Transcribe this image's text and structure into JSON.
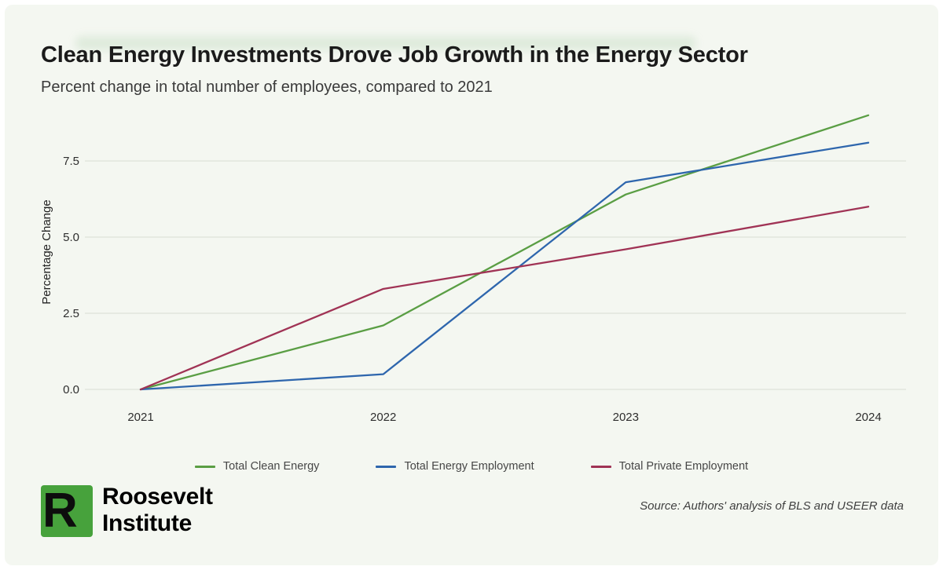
{
  "header": {
    "title": "Clean Energy Investments Drove Job Growth in the Energy Sector",
    "subtitle": "Percent change in total number of employees, compared to 2021"
  },
  "chart_data": {
    "type": "line",
    "title": "Clean Energy Investments Drove Job Growth in the Energy Sector",
    "subtitle": "Percent change in total number of employees, compared to 2021",
    "xlabel": "",
    "ylabel": "Percentage Change",
    "x_labels": [
      "2021",
      "2022",
      "2023",
      "2024"
    ],
    "yticks": [
      "0.0",
      "2.5",
      "5.0",
      "7.5"
    ],
    "ylim": [
      0,
      9.3
    ],
    "grid": "horizontal",
    "legend_position": "bottom",
    "series": [
      {
        "name": "Total Clean Energy",
        "color": "#5a9e44",
        "values": [
          0,
          2.1,
          6.4,
          9.0
        ]
      },
      {
        "name": "Total Energy Employment",
        "color": "#2e66ad",
        "values": [
          0,
          0.5,
          6.8,
          8.1
        ]
      },
      {
        "name": "Total Private Employment",
        "color": "#a03355",
        "values": [
          0,
          3.3,
          4.6,
          6.0
        ]
      }
    ]
  },
  "footer": {
    "logo_letter": "R",
    "brand_line1": "Roosevelt",
    "brand_line2": "Institute",
    "source": "Source: Authors' analysis of BLS and USEER data"
  }
}
